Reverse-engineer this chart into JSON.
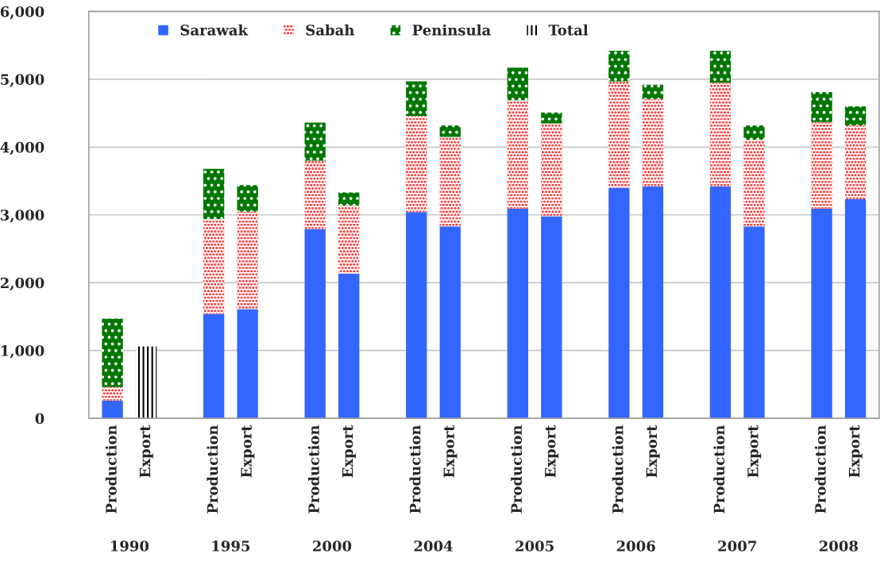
{
  "chart_data": {
    "type": "bar",
    "stacked": true,
    "categories": [
      "Production",
      "Export",
      null,
      "Production",
      "Export",
      null,
      "Production",
      "Export",
      null,
      "Production",
      "Export",
      null,
      "Production",
      "Export",
      null,
      "Production",
      "Export",
      null,
      "Production",
      "Export",
      null,
      "Production",
      "Export"
    ],
    "series": [
      {
        "name": "Sarawak",
        "color": "#3366ff",
        "values": [
          260,
          null,
          null,
          1540,
          1610,
          null,
          2790,
          2130,
          null,
          3040,
          2830,
          null,
          3090,
          2980,
          null,
          3400,
          3420,
          null,
          3420,
          2830,
          null,
          3090,
          3230
        ]
      },
      {
        "name": "Sabah",
        "color": "#ff0000",
        "values": [
          200,
          null,
          null,
          1400,
          1440,
          null,
          1010,
          1010,
          null,
          1420,
          1320,
          null,
          1600,
          1370,
          null,
          1570,
          1290,
          null,
          1530,
          1280,
          null,
          1280,
          1090
        ]
      },
      {
        "name": "Peninsula",
        "color": "#007700",
        "values": [
          1010,
          null,
          null,
          740,
          390,
          null,
          560,
          190,
          null,
          510,
          170,
          null,
          480,
          160,
          null,
          450,
          210,
          null,
          470,
          210,
          null,
          440,
          280
        ]
      },
      {
        "name": "Total",
        "color": "#000000",
        "values": [
          null,
          1060,
          null,
          null,
          null,
          null,
          null,
          null,
          null,
          null,
          null,
          null,
          null,
          null,
          null,
          null,
          null,
          null,
          null,
          null,
          null,
          null,
          null
        ]
      }
    ],
    "annotations": [
      "1990",
      "1995",
      "2000",
      "2004",
      "2005",
      "2006",
      "2007",
      "2008"
    ],
    "ylim": [
      0,
      6000
    ],
    "yticks": [
      0,
      {
        "value": 1000,
        "label": "1,000"
      },
      {
        "value": 2000,
        "label": "2,000"
      },
      {
        "value": 3000,
        "label": "3,000"
      },
      {
        "value": 4000,
        "label": "4,000"
      },
      {
        "value": 5000,
        "label": "5,000"
      },
      {
        "value": 6000,
        "label": "6,000"
      }
    ],
    "grid": "y",
    "legend": "top"
  }
}
